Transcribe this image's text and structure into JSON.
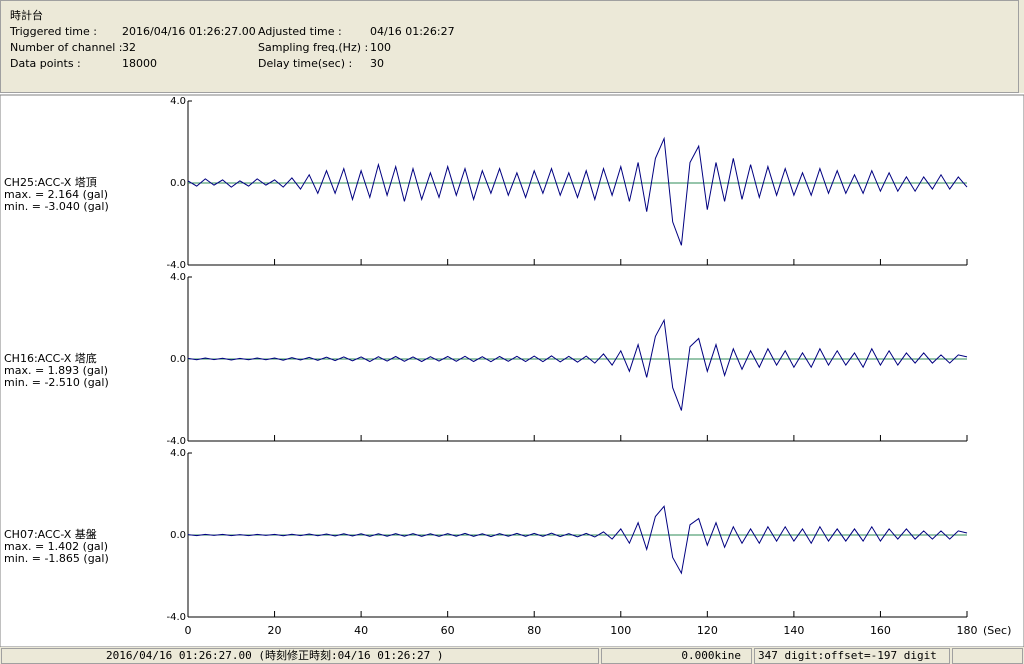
{
  "header": {
    "title": "時計台",
    "fields": [
      [
        {
          "label": "Triggered time :",
          "value": "2016/04/16 01:26:27.00"
        },
        {
          "label": "Adjusted time :",
          "value": "04/16 01:26:27"
        }
      ],
      [
        {
          "label": "Number of channel :",
          "value": "32"
        },
        {
          "label": "Sampling freq.(Hz) :",
          "value": "100"
        }
      ],
      [
        {
          "label": "Data points :",
          "value": "18000"
        },
        {
          "label": "Delay time(sec) :",
          "value": "30"
        }
      ]
    ]
  },
  "status": {
    "left": "2016/04/16 01:26:27.00  (時刻修正時刻:04/16 01:26:27  )",
    "middle": "0.000kine",
    "right": "347 digit:offset=-197 digit"
  },
  "chart_data": [
    {
      "type": "line",
      "label": "CH25:ACC-X 塔頂",
      "max_label": "max. = 2.164 (gal)",
      "min_label": "min. = -3.040 (gal)",
      "color": "#000080",
      "zero_color": "#2e8b57",
      "xlim": [
        0,
        180
      ],
      "ylim": [
        -4,
        4
      ],
      "yticks": [
        {
          "value": -4,
          "label": "-4.0"
        },
        {
          "value": 0,
          "label": "0.0"
        },
        {
          "value": 4,
          "label": "4.0"
        }
      ],
      "x": [
        0,
        2,
        4,
        6,
        8,
        10,
        12,
        14,
        16,
        18,
        20,
        22,
        24,
        26,
        28,
        30,
        32,
        34,
        36,
        38,
        40,
        42,
        44,
        46,
        48,
        50,
        52,
        54,
        56,
        58,
        60,
        62,
        64,
        66,
        68,
        70,
        72,
        74,
        76,
        78,
        80,
        82,
        84,
        86,
        88,
        90,
        92,
        94,
        96,
        98,
        100,
        102,
        104,
        106,
        108,
        110,
        112,
        114,
        116,
        118,
        120,
        122,
        124,
        126,
        128,
        130,
        132,
        134,
        136,
        138,
        140,
        142,
        144,
        146,
        148,
        150,
        152,
        154,
        156,
        158,
        160,
        162,
        164,
        166,
        168,
        170,
        172,
        174,
        176,
        178,
        180
      ],
      "values": [
        0.1,
        -0.15,
        0.2,
        -0.1,
        0.15,
        -0.2,
        0.1,
        -0.15,
        0.2,
        -0.1,
        0.15,
        -0.2,
        0.25,
        -0.3,
        0.4,
        -0.5,
        0.6,
        -0.5,
        0.7,
        -0.8,
        0.6,
        -0.7,
        0.9,
        -0.6,
        0.8,
        -0.9,
        0.7,
        -0.8,
        0.5,
        -0.7,
        0.8,
        -0.6,
        0.7,
        -0.8,
        0.6,
        -0.5,
        0.7,
        -0.6,
        0.5,
        -0.7,
        0.6,
        -0.5,
        0.7,
        -0.6,
        0.5,
        -0.7,
        0.6,
        -0.8,
        0.7,
        -0.6,
        0.8,
        -0.9,
        1.0,
        -1.4,
        1.2,
        2.164,
        -1.9,
        -3.04,
        1.0,
        1.8,
        -1.3,
        1.0,
        -0.9,
        1.2,
        -0.8,
        0.9,
        -0.7,
        0.8,
        -0.6,
        0.7,
        -0.6,
        0.5,
        -0.6,
        0.7,
        -0.5,
        0.6,
        -0.5,
        0.4,
        -0.5,
        0.6,
        -0.4,
        0.5,
        -0.4,
        0.3,
        -0.4,
        0.3,
        -0.3,
        0.4,
        -0.3,
        0.3,
        -0.2
      ]
    },
    {
      "type": "line",
      "label": "CH16:ACC-X 塔底",
      "max_label": "max. = 1.893 (gal)",
      "min_label": "min. = -2.510 (gal)",
      "color": "#000080",
      "zero_color": "#2e8b57",
      "xlim": [
        0,
        180
      ],
      "ylim": [
        -4,
        4
      ],
      "yticks": [
        {
          "value": -4,
          "label": "-4.0"
        },
        {
          "value": 0,
          "label": "0.0"
        },
        {
          "value": 4,
          "label": "4.0"
        }
      ],
      "x": [
        0,
        2,
        4,
        6,
        8,
        10,
        12,
        14,
        16,
        18,
        20,
        22,
        24,
        26,
        28,
        30,
        32,
        34,
        36,
        38,
        40,
        42,
        44,
        46,
        48,
        50,
        52,
        54,
        56,
        58,
        60,
        62,
        64,
        66,
        68,
        70,
        72,
        74,
        76,
        78,
        80,
        82,
        84,
        86,
        88,
        90,
        92,
        94,
        96,
        98,
        100,
        102,
        104,
        106,
        108,
        110,
        112,
        114,
        116,
        118,
        120,
        122,
        124,
        126,
        128,
        130,
        132,
        134,
        136,
        138,
        140,
        142,
        144,
        146,
        148,
        150,
        152,
        154,
        156,
        158,
        160,
        162,
        164,
        166,
        168,
        170,
        172,
        174,
        176,
        178,
        180
      ],
      "values": [
        0.03,
        -0.04,
        0.05,
        -0.03,
        0.04,
        -0.05,
        0.03,
        -0.04,
        0.05,
        -0.04,
        0.05,
        -0.06,
        0.07,
        -0.05,
        0.08,
        -0.07,
        0.09,
        -0.08,
        0.1,
        -0.09,
        0.1,
        -0.12,
        0.11,
        -0.1,
        0.12,
        -0.11,
        0.1,
        -0.12,
        0.11,
        -0.1,
        0.12,
        -0.11,
        0.13,
        -0.12,
        0.11,
        -0.13,
        0.12,
        -0.11,
        0.13,
        -0.12,
        0.14,
        -0.13,
        0.15,
        -0.14,
        0.13,
        -0.15,
        0.14,
        -0.2,
        0.25,
        -0.3,
        0.4,
        -0.6,
        0.7,
        -0.9,
        1.1,
        1.893,
        -1.4,
        -2.51,
        0.6,
        1.0,
        -0.6,
        0.7,
        -0.8,
        0.5,
        -0.5,
        0.4,
        -0.4,
        0.5,
        -0.3,
        0.4,
        -0.4,
        0.3,
        -0.4,
        0.5,
        -0.3,
        0.4,
        -0.3,
        0.3,
        -0.4,
        0.5,
        -0.3,
        0.4,
        -0.3,
        0.3,
        -0.2,
        0.3,
        -0.2,
        0.2,
        -0.2,
        0.2,
        0.1
      ]
    },
    {
      "type": "line",
      "label": "CH07:ACC-X 基盤",
      "max_label": "max. = 1.402 (gal)",
      "min_label": "min. = -1.865 (gal)",
      "color": "#000080",
      "zero_color": "#2e8b57",
      "xlim": [
        0,
        180
      ],
      "ylim": [
        -4,
        4
      ],
      "yticks": [
        {
          "value": -4,
          "label": "-4.0"
        },
        {
          "value": 0,
          "label": "0.0"
        },
        {
          "value": 4,
          "label": "4.0"
        }
      ],
      "xticks": [
        0,
        20,
        40,
        60,
        80,
        100,
        120,
        140,
        160,
        180
      ],
      "x_label": "(Sec)",
      "x": [
        0,
        2,
        4,
        6,
        8,
        10,
        12,
        14,
        16,
        18,
        20,
        22,
        24,
        26,
        28,
        30,
        32,
        34,
        36,
        38,
        40,
        42,
        44,
        46,
        48,
        50,
        52,
        54,
        56,
        58,
        60,
        62,
        64,
        66,
        68,
        70,
        72,
        74,
        76,
        78,
        80,
        82,
        84,
        86,
        88,
        90,
        92,
        94,
        96,
        98,
        100,
        102,
        104,
        106,
        108,
        110,
        112,
        114,
        116,
        118,
        120,
        122,
        124,
        126,
        128,
        130,
        132,
        134,
        136,
        138,
        140,
        142,
        144,
        146,
        148,
        150,
        152,
        154,
        156,
        158,
        160,
        162,
        164,
        166,
        168,
        170,
        172,
        174,
        176,
        178,
        180
      ],
      "values": [
        0.02,
        -0.03,
        0.03,
        -0.02,
        0.03,
        -0.03,
        0.02,
        -0.03,
        0.03,
        -0.02,
        0.03,
        -0.04,
        0.04,
        -0.03,
        0.05,
        -0.04,
        0.05,
        -0.05,
        0.06,
        -0.05,
        0.06,
        -0.07,
        0.06,
        -0.06,
        0.07,
        -0.06,
        0.07,
        -0.07,
        0.06,
        -0.07,
        0.07,
        -0.06,
        0.08,
        -0.07,
        0.06,
        -0.08,
        0.07,
        -0.06,
        0.08,
        -0.07,
        0.08,
        -0.07,
        0.09,
        -0.08,
        0.07,
        -0.09,
        0.08,
        -0.1,
        0.15,
        -0.2,
        0.3,
        -0.4,
        0.6,
        -0.7,
        0.9,
        1.402,
        -1.1,
        -1.865,
        0.5,
        0.8,
        -0.5,
        0.6,
        -0.6,
        0.4,
        -0.4,
        0.3,
        -0.4,
        0.4,
        -0.3,
        0.4,
        -0.3,
        0.3,
        -0.4,
        0.4,
        -0.3,
        0.3,
        -0.3,
        0.3,
        -0.3,
        0.4,
        -0.3,
        0.3,
        -0.2,
        0.3,
        -0.2,
        0.2,
        -0.2,
        0.2,
        -0.2,
        0.2,
        0.1
      ]
    }
  ]
}
